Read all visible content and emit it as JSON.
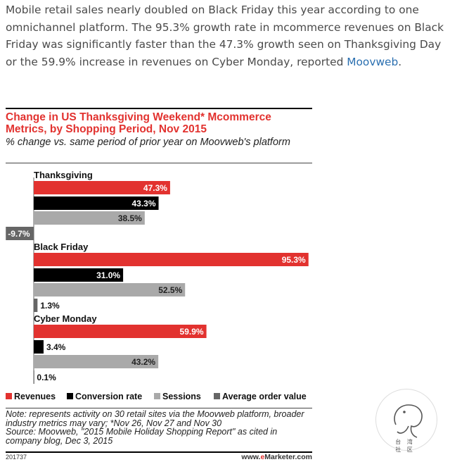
{
  "article": {
    "text": "Mobile retail sales nearly doubled on Black Friday this year according to one omnichannel platform. The 95.3% growth rate in mcommerce revenues on Black Friday was significantly faster than the 47.3% growth seen on Thanksgiving Day or the 59.9% increase in revenues on Cyber Monday, reported ",
    "link": "Moovweb",
    "tail": "."
  },
  "chart_data": {
    "type": "bar",
    "orientation": "horizontal",
    "title": "Change in US Thanksgiving Weekend* Mcommerce Metrics, by Shopping Period, Nov 2015",
    "subtitle": "% change vs. same period of prior year on Moovweb's platform",
    "categories": [
      "Thanksgiving",
      "Black Friday",
      "Cyber Monday"
    ],
    "series": [
      {
        "name": "Revenues",
        "color": "#e2322f",
        "values": [
          47.3,
          95.3,
          59.9
        ]
      },
      {
        "name": "Conversion rate",
        "color": "#000000",
        "values": [
          43.3,
          31.0,
          3.4
        ]
      },
      {
        "name": "Sessions",
        "color": "#a9a9a9",
        "values": [
          38.5,
          52.5,
          43.2
        ]
      },
      {
        "name": "Average order value",
        "color": "#666666",
        "values": [
          -9.7,
          1.3,
          0.1
        ]
      }
    ],
    "value_labels": [
      [
        "47.3%",
        "43.3%",
        "38.5%",
        "-9.7%"
      ],
      [
        "95.3%",
        "31.0%",
        "52.5%",
        "1.3%"
      ],
      [
        "59.9%",
        "3.4%",
        "43.2%",
        "0.1%"
      ]
    ],
    "xlim": [
      -9.7,
      95.3
    ],
    "legend_position": "bottom",
    "grid": false
  },
  "note": "Note: represents activity on 30 retail sites via the Moovweb platform, broader industry metrics may vary; *Nov 26, Nov 27 and Nov 30",
  "source": "Source: Moovweb, \"2015 Mobile Holiday Shopping Report\" as cited in company blog, Dec 3, 2015",
  "chart_id": "201737",
  "brand": {
    "prefix": "www.",
    "e": "e",
    "rest": "Marketer.com"
  },
  "watermark": "台 湾 社 区"
}
